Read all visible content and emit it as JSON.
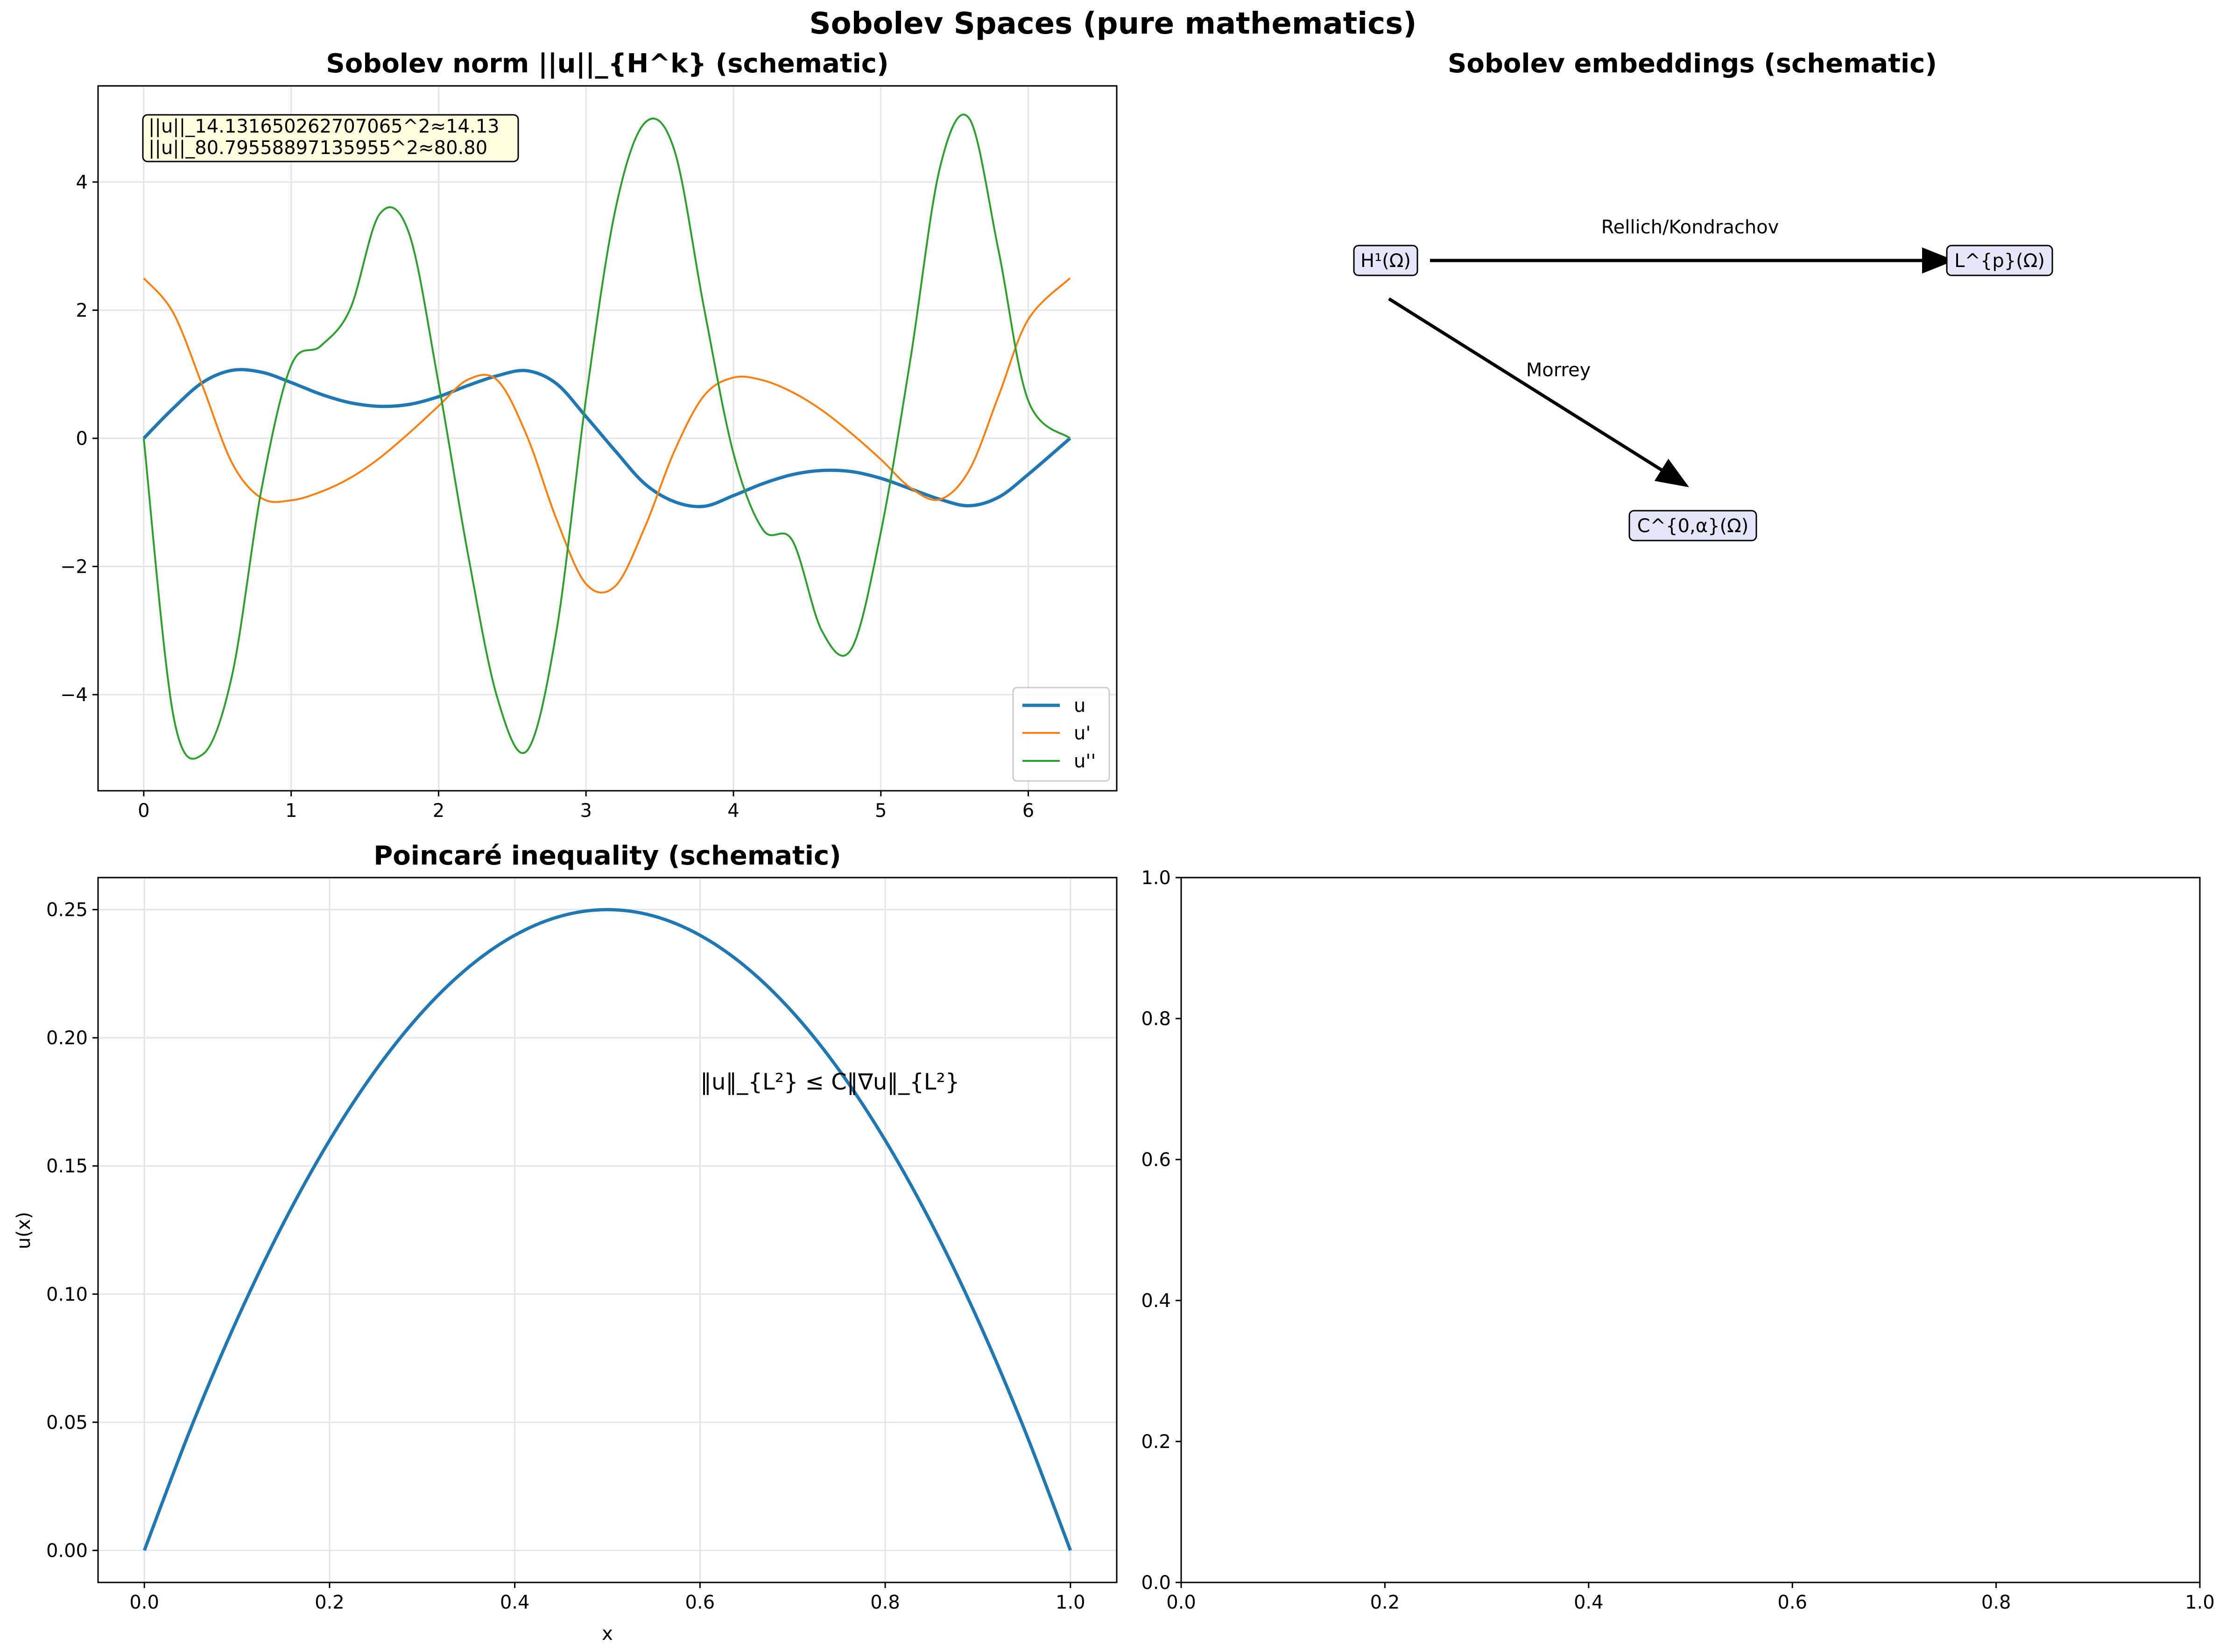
{
  "figure": {
    "title": "Sobolev Spaces (pure mathematics)"
  },
  "colors": {
    "u": "#1f77b4",
    "du": "#ff7f0e",
    "ddu": "#2ca02c",
    "grid": "#e5e5e5",
    "axes": "#000000",
    "norm_box_fill": "#ffffe0",
    "node_box_fill": "#e6e6fa"
  },
  "chart_data": [
    {
      "type": "line",
      "title": "Sobolev norm ||u||_{H^k} (schematic)",
      "xlabel": "",
      "ylabel": "",
      "xlim": [
        -0.31,
        6.6
      ],
      "ylim": [
        -5.5,
        5.5
      ],
      "x_ticks": [
        0,
        1,
        2,
        3,
        4,
        5,
        6
      ],
      "y_ticks": [
        -4,
        -2,
        0,
        2,
        4
      ],
      "x_tick_labels": [
        "0",
        "1",
        "2",
        "3",
        "4",
        "5",
        "6"
      ],
      "y_tick_labels": [
        "−4",
        "−2",
        "0",
        "2",
        "4"
      ],
      "grid": true,
      "legend_position": "lower right",
      "annotation": [
        "||u||_14.131650262707065^2≈14.13",
        "||u||_80.79558897135955^2≈80.80"
      ],
      "x": [
        0,
        0.2,
        0.4,
        0.6,
        0.8,
        1.0,
        1.2,
        1.4,
        1.6,
        1.8,
        2.0,
        2.2,
        2.4,
        2.6,
        2.8,
        3.0,
        3.2,
        3.4,
        3.6,
        3.8,
        4.0,
        4.2,
        4.4,
        4.6,
        4.8,
        5.0,
        5.2,
        5.4,
        5.6,
        5.8,
        6.0,
        6.2832
      ],
      "series": [
        {
          "name": "u",
          "values": [
            0.0,
            0.469,
            0.873,
            1.061,
            1.032,
            0.871,
            0.689,
            0.556,
            0.499,
            0.529,
            0.65,
            0.825,
            0.978,
            1.055,
            0.852,
            0.339,
            -0.2,
            -0.712,
            -0.989,
            -1.061,
            -0.894,
            -0.707,
            -0.566,
            -0.502,
            -0.519,
            -0.624,
            -0.787,
            -0.951,
            -1.052,
            -0.917,
            -0.562,
            0.0
          ]
        },
        {
          "name": "u'",
          "values": [
            2.5,
            1.96,
            0.811,
            -0.389,
            -0.935,
            -0.968,
            -0.836,
            -0.619,
            -0.308,
            0.082,
            0.504,
            0.918,
            0.903,
            0.033,
            -1.265,
            -2.272,
            -2.302,
            -1.382,
            -0.196,
            0.664,
            0.948,
            0.906,
            0.72,
            0.439,
            0.077,
            -0.329,
            -0.77,
            -0.954,
            -0.495,
            0.671,
            1.856,
            2.5
          ]
        },
        {
          "name": "u''",
          "values": [
            0.0,
            -4.316,
            -4.932,
            -3.689,
            -0.779,
            1.137,
            1.44,
            2.016,
            3.499,
            3.196,
            0.855,
            -1.817,
            -4.062,
            -4.875,
            -3.004,
            0.622,
            3.577,
            4.926,
            4.491,
            2.041,
            -0.232,
            -1.425,
            -1.595,
            -3.005,
            -3.288,
            -1.464,
            1.225,
            4.217,
            4.989,
            2.91,
            0.586,
            0.0
          ]
        }
      ]
    },
    {
      "type": "diagram",
      "title": "Sobolev embeddings (schematic)",
      "nodes": {
        "h1": "H¹(Ω)",
        "lp": "L^{p}(Ω)",
        "c0a": "C^{0,α}(Ω)"
      },
      "edges": [
        {
          "from": "H¹(Ω)",
          "to": "L^{p}(Ω)",
          "label": "Rellich/Kondrachov"
        },
        {
          "from": "H¹(Ω)",
          "to": "C^{0,α}(Ω)",
          "label": "Morrey"
        }
      ]
    },
    {
      "type": "line",
      "title": "Poincaré inequality (schematic)",
      "xlabel": "x",
      "ylabel": "u(x)",
      "xlim": [
        -0.05,
        1.05
      ],
      "ylim": [
        -0.0125,
        0.2625
      ],
      "x_ticks": [
        0.0,
        0.2,
        0.4,
        0.6,
        0.8,
        1.0
      ],
      "y_ticks": [
        0.0,
        0.05,
        0.1,
        0.15,
        0.2,
        0.25
      ],
      "x_tick_labels": [
        "0.0",
        "0.2",
        "0.4",
        "0.6",
        "0.8",
        "1.0"
      ],
      "y_tick_labels": [
        "0.00",
        "0.05",
        "0.10",
        "0.15",
        "0.20",
        "0.25"
      ],
      "grid": true,
      "annotation": "‖u‖_{L²} ≤ C‖∇u‖_{L²}",
      "x": [
        0,
        0.05,
        0.1,
        0.15,
        0.2,
        0.25,
        0.3,
        0.35,
        0.4,
        0.45,
        0.5,
        0.55,
        0.6,
        0.65,
        0.7,
        0.75,
        0.8,
        0.85,
        0.9,
        0.95,
        1.0
      ],
      "series": [
        {
          "name": "",
          "values": [
            0,
            0.0475,
            0.09,
            0.1275,
            0.16,
            0.1875,
            0.21,
            0.2275,
            0.24,
            0.2475,
            0.25,
            0.2475,
            0.24,
            0.2275,
            0.21,
            0.1875,
            0.16,
            0.1275,
            0.09,
            0.0475,
            0
          ]
        }
      ]
    },
    {
      "type": "line",
      "title": "",
      "xlabel": "",
      "ylabel": "",
      "xlim": [
        0,
        1
      ],
      "ylim": [
        0,
        1
      ],
      "x_ticks": [
        0.0,
        0.2,
        0.4,
        0.6,
        0.8,
        1.0
      ],
      "y_ticks": [
        0.0,
        0.2,
        0.4,
        0.6,
        0.8,
        1.0
      ],
      "x_tick_labels": [
        "0.0",
        "0.2",
        "0.4",
        "0.6",
        "0.8",
        "1.0"
      ],
      "y_tick_labels": [
        "0.0",
        "0.2",
        "0.4",
        "0.6",
        "0.8",
        "1.0"
      ],
      "grid": false,
      "series": []
    }
  ]
}
